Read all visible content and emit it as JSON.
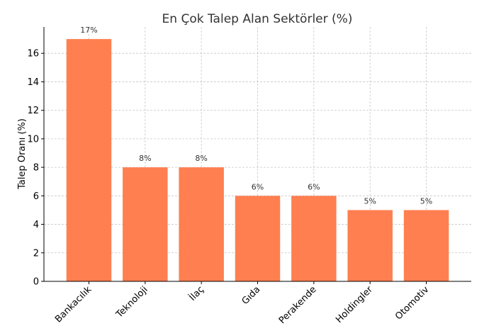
{
  "chart_data": {
    "type": "bar",
    "title": "En Çok Talep Alan Sektörler (%)",
    "xlabel": "",
    "ylabel": "Talep Oranı (%)",
    "categories": [
      "Bankacılık",
      "Teknoloji",
      "İlaç",
      "Gıda",
      "Perakende",
      "Holdingler",
      "Otomotiv"
    ],
    "values": [
      17,
      8,
      8,
      6,
      6,
      5,
      5
    ],
    "data_labels": [
      "17%",
      "8%",
      "8%",
      "6%",
      "6%",
      "5%",
      "5%"
    ],
    "ylim": [
      0,
      17.85
    ],
    "yticks": [
      0,
      2,
      4,
      6,
      8,
      10,
      12,
      14,
      16
    ],
    "grid": true,
    "bar_color": "#ff7f50"
  }
}
